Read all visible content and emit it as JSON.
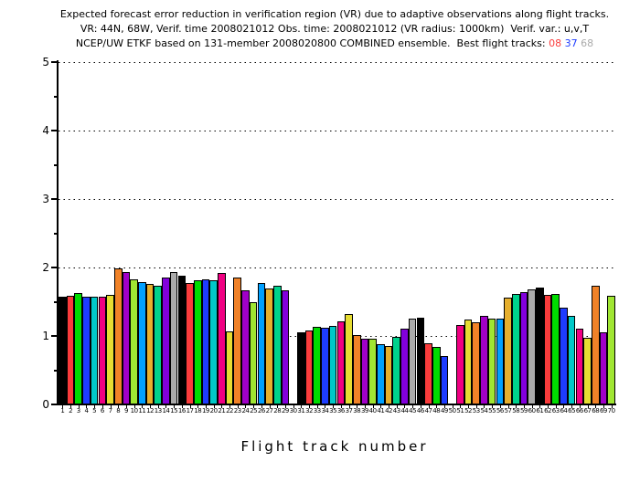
{
  "title": {
    "line1": "Expected forecast error reduction in verification region (VR) due to adaptive observations along flight tracks.",
    "line2": "VR: 44N, 68W, Verif. time 2008021012 Obs. time: 2008021012 (VR radius: 1000km)  Verif. var.: u,v,T",
    "line3_prefix": "NCEP/UW ETKF based on 131-member 2008020800 COMBINED ensemble.  Best flight tracks: ",
    "best_tracks": [
      {
        "label": "08",
        "color": "#fa3c3c"
      },
      {
        "label": "37",
        "color": "#1e3cff"
      },
      {
        "label": "68",
        "color": "#aaaaaa"
      }
    ]
  },
  "chart_data": {
    "type": "bar",
    "title": "Expected forecast error reduction in verification region (VR) due to adaptive observations along flight tracks.",
    "xlabel": "Flight track number",
    "ylabel": "",
    "ylim": [
      0,
      5
    ],
    "yticks": [
      "0",
      "1",
      "2",
      "3",
      "4",
      "5"
    ],
    "grid": "horizontal dotted black lines at y = 1,2,3,4,5",
    "legend_position": "none",
    "categories": [
      "1",
      "2",
      "3",
      "4",
      "5",
      "6",
      "7",
      "8",
      "9",
      "10",
      "11",
      "12",
      "13",
      "14",
      "15",
      "16",
      "17",
      "18",
      "19",
      "20",
      "21",
      "22",
      "23",
      "24",
      "25",
      "26",
      "27",
      "28",
      "29",
      "30",
      "31",
      "32",
      "33",
      "34",
      "35",
      "36",
      "37",
      "38",
      "39",
      "40",
      "41",
      "42",
      "43",
      "44",
      "45",
      "46",
      "47",
      "48",
      "49",
      "50",
      "51",
      "52",
      "53",
      "54",
      "55",
      "56",
      "57",
      "58",
      "59",
      "60",
      "61",
      "62",
      "63",
      "64",
      "65",
      "66",
      "67",
      "68",
      "69",
      "70"
    ],
    "values": [
      1.58,
      1.59,
      1.63,
      1.58,
      1.58,
      1.57,
      1.6,
      1.99,
      1.94,
      1.83,
      1.79,
      1.76,
      1.73,
      1.85,
      1.93,
      1.88,
      1.77,
      1.81,
      1.83,
      1.81,
      1.92,
      1.07,
      1.85,
      1.67,
      1.49,
      1.78,
      1.69,
      1.73,
      1.67,
      0,
      1.06,
      1.08,
      1.14,
      1.12,
      1.15,
      1.21,
      1.32,
      1.02,
      0.96,
      0.96,
      0.88,
      0.85,
      0.99,
      1.11,
      1.26,
      1.27,
      0.9,
      0.84,
      0.71,
      0,
      1.16,
      1.24,
      1.2,
      1.3,
      1.26,
      1.26,
      1.56,
      1.61,
      1.64,
      1.68,
      1.71,
      1.6,
      1.61,
      1.41,
      1.29,
      1.11,
      0.97,
      1.73,
      1.05,
      1.59
    ],
    "bar_color_cycle": [
      "#000000",
      "#fa3c3c",
      "#00dc00",
      "#1e3cff",
      "#00c8c8",
      "#f00082",
      "#e6dc32",
      "#f08228",
      "#a000c8",
      "#a0e632",
      "#00a0ff",
      "#e6af2d",
      "#00d28c",
      "#8200dc",
      "#aaaaaa"
    ],
    "color_rule": "bar n uses bar_color_cycle[(n-1) mod 15]; bars 30 and 50 are zero (no bar drawn)"
  }
}
